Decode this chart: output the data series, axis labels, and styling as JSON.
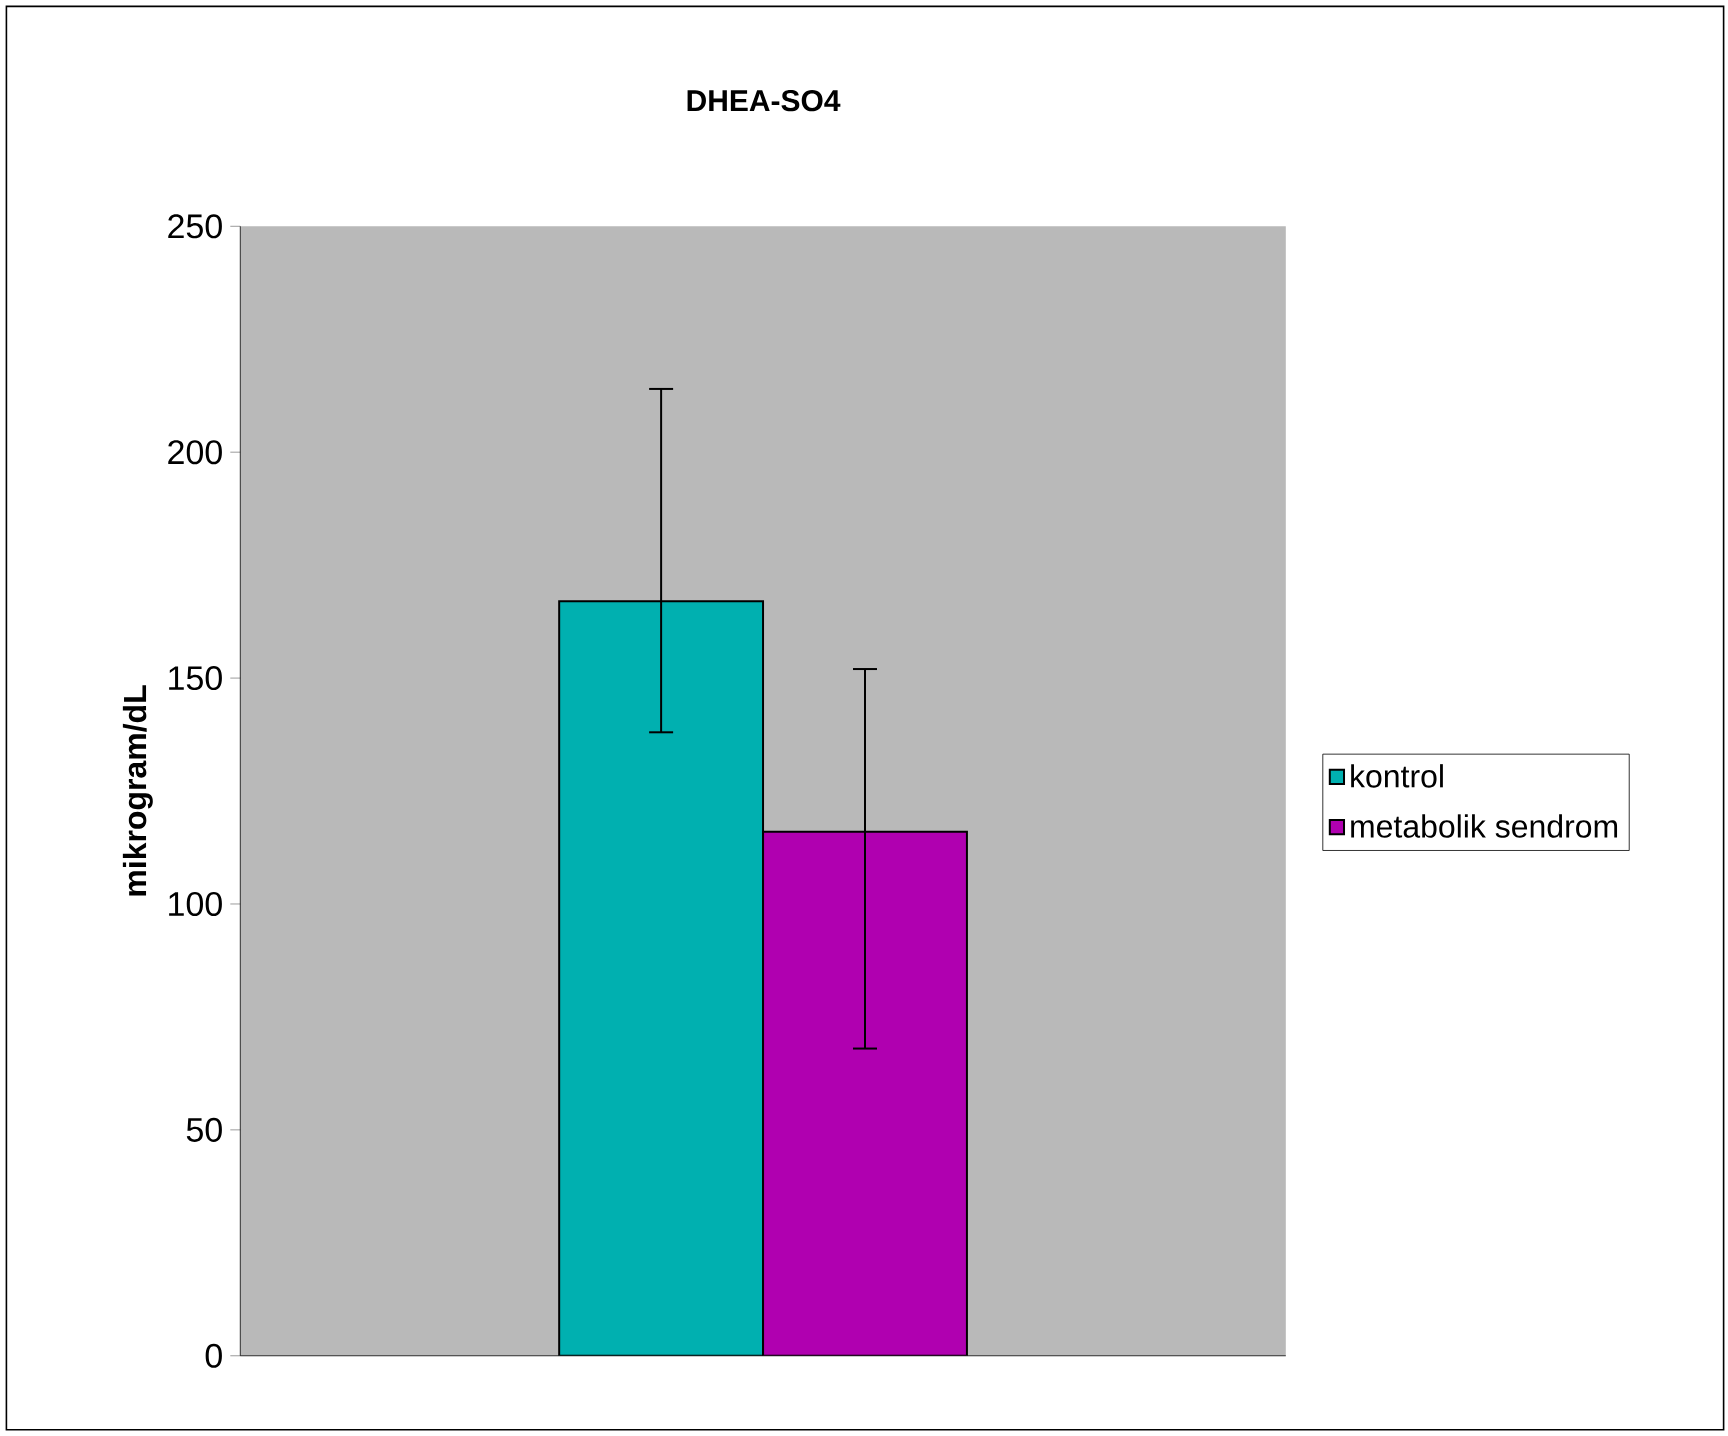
{
  "chart_data": {
    "type": "bar",
    "title": "DHEA-SO4",
    "ylabel": "mikrogram/dL",
    "categories": [
      null
    ],
    "series": [
      {
        "name": "kontrol",
        "color": "#00b0b0",
        "values": [
          167
        ],
        "errors": [
          [
            138,
            214
          ]
        ]
      },
      {
        "name": "metabolik sendrom",
        "color": "#b000b0",
        "values": [
          116
        ],
        "errors": [
          [
            68,
            152
          ]
        ]
      }
    ],
    "ylim": [
      0,
      250
    ],
    "yticks": [
      0,
      50,
      100,
      150,
      200,
      250
    ],
    "legend": "right",
    "grid": false
  }
}
